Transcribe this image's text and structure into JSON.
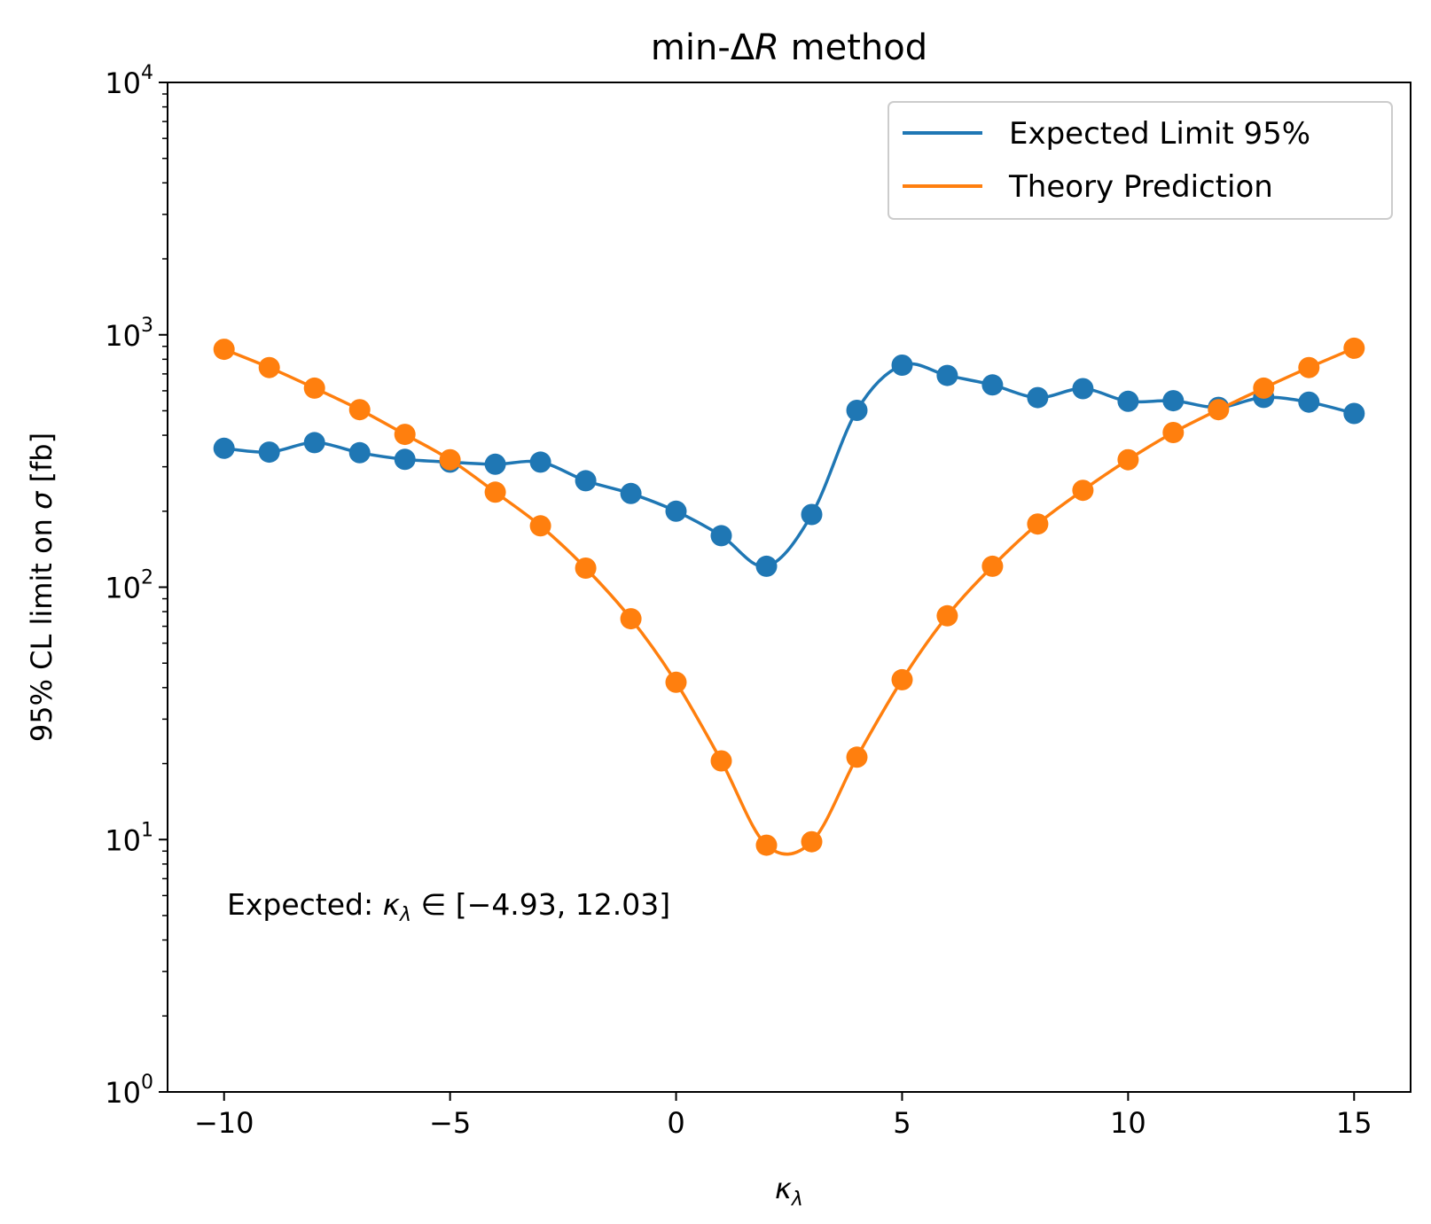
{
  "chart_data": {
    "type": "line",
    "title": "min-ΔR method",
    "xlabel": "κλ",
    "ylabel": "95% CL limit on σ [fb]",
    "yscale": "log",
    "xlim": [
      -11.25,
      16.25
    ],
    "ylim": [
      1,
      10000
    ],
    "xticks": [
      -10,
      -5,
      0,
      5,
      10,
      15
    ],
    "xtick_labels": [
      "−10",
      "−5",
      "0",
      "5",
      "10",
      "15"
    ],
    "ytick_exponents": [
      "0",
      "1",
      "2",
      "3",
      "4"
    ],
    "legend_position": "top-right",
    "annotation": "Expected: κλ ∈ [−4.93, 12.03]",
    "series": [
      {
        "name": "Expected Limit 95%",
        "color": "#1f77b4",
        "x": [
          -10,
          -9,
          -8,
          -7,
          -6,
          -5,
          -4,
          -3,
          -2,
          -1,
          0,
          1,
          2,
          3,
          4,
          5,
          6,
          7,
          8,
          9,
          10,
          11,
          12,
          13,
          14,
          15
        ],
        "y": [
          355,
          343,
          374,
          341,
          321,
          313,
          307,
          313,
          264,
          235,
          200,
          160,
          121,
          194,
          502,
          758,
          690,
          633,
          564,
          612,
          545,
          548,
          516,
          565,
          541,
          488
        ]
      },
      {
        "name": "Theory Prediction",
        "color": "#ff7f0e",
        "x": [
          -10,
          -9,
          -8,
          -7,
          -6,
          -5,
          -4,
          -3,
          -2,
          -1,
          0,
          1,
          2,
          3,
          4,
          5,
          6,
          7,
          8,
          9,
          10,
          11,
          12,
          13,
          14,
          15
        ],
        "y": [
          876,
          742,
          615,
          505,
          403,
          320,
          238,
          175,
          119,
          75,
          42,
          20.5,
          9.5,
          9.8,
          21.2,
          43,
          77,
          121,
          178,
          242,
          320,
          410,
          505,
          615,
          742,
          885
        ]
      }
    ]
  }
}
